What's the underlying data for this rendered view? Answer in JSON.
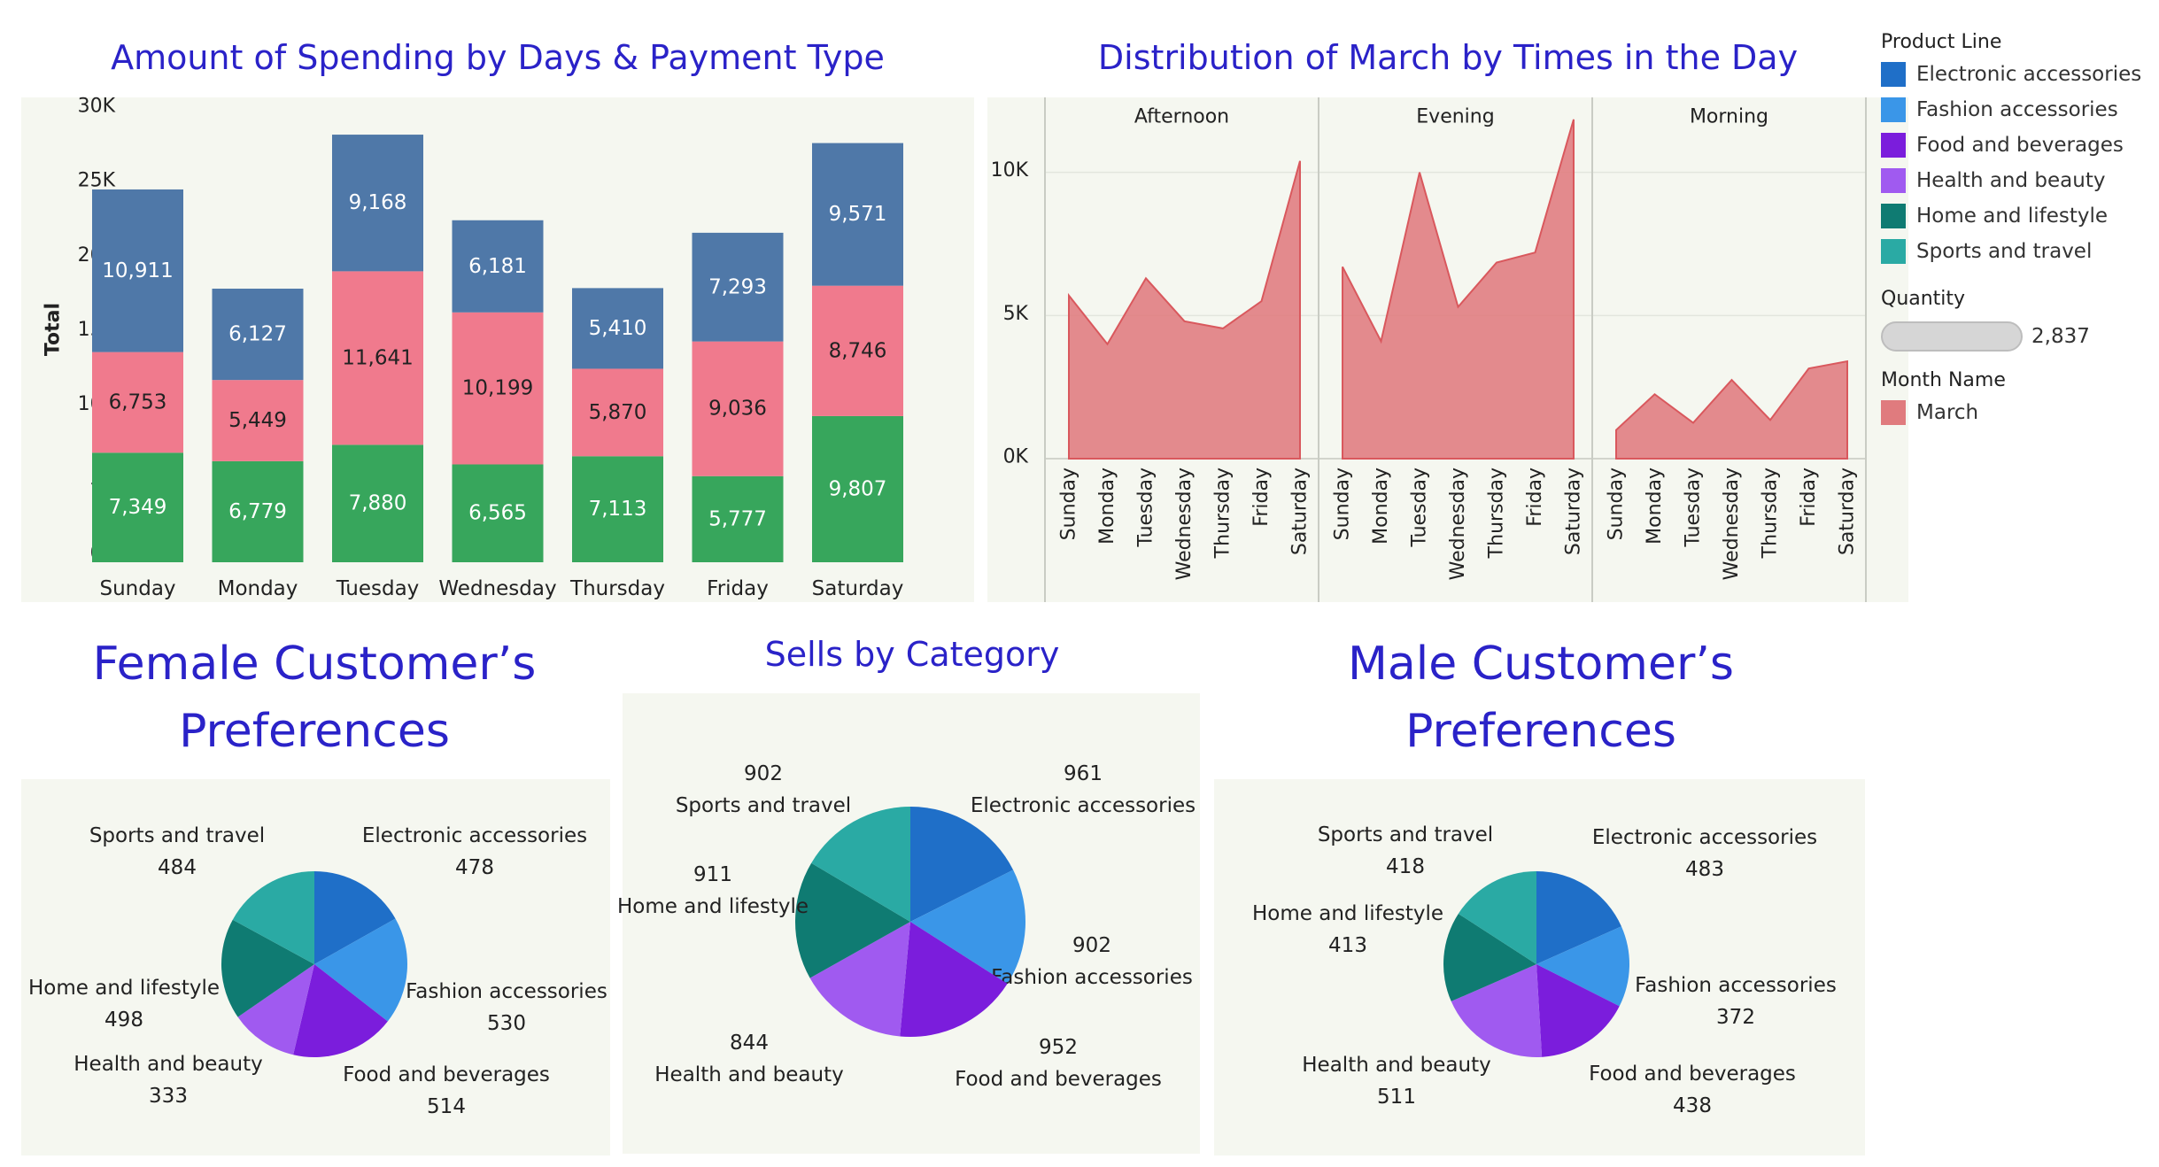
{
  "titles": {
    "bar": "Amount of Spending by Days & Payment Type",
    "area": "Distribution of March by Times in the Day",
    "female": "Female Customer’s Preferences",
    "category": "Sells by Category",
    "male": "Male Customer’s Preferences"
  },
  "legend": {
    "product_line_title": "Product Line",
    "product_lines": [
      {
        "label": "Electronic accessories",
        "color": "#1f6fc8"
      },
      {
        "label": "Fashion accessories",
        "color": "#3a96e8"
      },
      {
        "label": "Food and beverages",
        "color": "#7b1ddc"
      },
      {
        "label": "Health and beauty",
        "color": "#a05af0"
      },
      {
        "label": "Home and lifestyle",
        "color": "#0f7b72"
      },
      {
        "label": "Sports and travel",
        "color": "#2aaaa4"
      }
    ],
    "quantity_title": "Quantity",
    "quantity_value": "2,837",
    "month_title": "Month Name",
    "month_label": "March",
    "month_color": "#e07b7e"
  },
  "chart_data": [
    {
      "type": "bar",
      "stacked": true,
      "title": "Amount of Spending by Days & Payment Type",
      "ylabel": "Total",
      "ylim": [
        0,
        30000
      ],
      "yticks": [
        0,
        5000,
        10000,
        15000,
        20000,
        25000,
        30000
      ],
      "ytick_labels": [
        "0K",
        "5K",
        "10K",
        "15K",
        "20K",
        "25K",
        "30K"
      ],
      "categories": [
        "Sunday",
        "Monday",
        "Tuesday",
        "Wednesday",
        "Thursday",
        "Friday",
        "Saturday"
      ],
      "series": [
        {
          "color": "#37a65c",
          "label_color": "#ffffff",
          "values": [
            7349,
            6779,
            7880,
            6565,
            7113,
            5777,
            9807
          ],
          "labels": [
            "7,349",
            "6,779",
            "7,880",
            "6,565",
            "7,113",
            "5,777",
            "9,807"
          ]
        },
        {
          "color": "#f07a8d",
          "label_color": "#222222",
          "values": [
            6753,
            5449,
            11641,
            10199,
            5870,
            9036,
            8746
          ],
          "labels": [
            "6,753",
            "5,449",
            "11,641",
            "10,199",
            "5,870",
            "9,036",
            "8,746"
          ]
        },
        {
          "color": "#4f78a8",
          "label_color": "#ffffff",
          "values": [
            10911,
            6127,
            9168,
            6181,
            5410,
            7293,
            9571
          ],
          "labels": [
            "10,911",
            "6,127",
            "9,168",
            "6,181",
            "5,410",
            "7,293",
            "9,571"
          ]
        }
      ]
    },
    {
      "type": "area",
      "title": "Distribution of March by Times in the Day",
      "ylim": [
        0,
        12000
      ],
      "yticks": [
        0,
        5000,
        10000
      ],
      "ytick_labels": [
        "0K",
        "5K",
        "10K"
      ],
      "categories": [
        "Sunday",
        "Monday",
        "Tuesday",
        "Wednesday",
        "Thursday",
        "Friday",
        "Saturday"
      ],
      "color": "#e07b7e",
      "panels": [
        {
          "name": "Afternoon",
          "values": [
            5700,
            4000,
            6300,
            4800,
            4550,
            5500,
            10400
          ]
        },
        {
          "name": "Evening",
          "values": [
            6700,
            4100,
            10000,
            5300,
            6850,
            7200,
            11850
          ]
        },
        {
          "name": "Morning",
          "values": [
            1000,
            2250,
            1250,
            2750,
            1350,
            3150,
            3400
          ]
        }
      ]
    },
    {
      "type": "pie",
      "title": "Female Customer’s Preferences",
      "slices": [
        {
          "label": "Electronic accessories",
          "value": 478,
          "value_label": "478",
          "color": "#1f6fc8"
        },
        {
          "label": "Fashion accessories",
          "value": 530,
          "value_label": "530",
          "color": "#3a96e8"
        },
        {
          "label": "Food and beverages",
          "value": 514,
          "value_label": "514",
          "color": "#7b1ddc"
        },
        {
          "label": "Health and beauty",
          "value": 333,
          "value_label": "333",
          "color": "#a05af0"
        },
        {
          "label": "Home and lifestyle",
          "value": 498,
          "value_label": "498",
          "color": "#0f7b72"
        },
        {
          "label": "Sports and travel",
          "value": 484,
          "value_label": "484",
          "color": "#2aaaa4"
        }
      ]
    },
    {
      "type": "pie",
      "title": "Sells by Category",
      "slices": [
        {
          "label": "Electronic accessories",
          "value": 961,
          "value_label": "961",
          "color": "#1f6fc8"
        },
        {
          "label": "Fashion accessories",
          "value": 902,
          "value_label": "902",
          "color": "#3a96e8"
        },
        {
          "label": "Food and beverages",
          "value": 952,
          "value_label": "952",
          "color": "#7b1ddc"
        },
        {
          "label": "Health and beauty",
          "value": 844,
          "value_label": "844",
          "color": "#a05af0"
        },
        {
          "label": "Home and lifestyle",
          "value": 911,
          "value_label": "911",
          "color": "#0f7b72"
        },
        {
          "label": "Sports and travel",
          "value": 902,
          "value_label": "902",
          "color": "#2aaaa4"
        }
      ]
    },
    {
      "type": "pie",
      "title": "Male Customer’s Preferences",
      "slices": [
        {
          "label": "Electronic accessories",
          "value": 483,
          "value_label": "483",
          "color": "#1f6fc8"
        },
        {
          "label": "Fashion accessories",
          "value": 372,
          "value_label": "372",
          "color": "#3a96e8"
        },
        {
          "label": "Food and beverages",
          "value": 438,
          "value_label": "438",
          "color": "#7b1ddc"
        },
        {
          "label": "Health and beauty",
          "value": 511,
          "value_label": "511",
          "color": "#a05af0"
        },
        {
          "label": "Home and lifestyle",
          "value": 413,
          "value_label": "413",
          "color": "#0f7b72"
        },
        {
          "label": "Sports and travel",
          "value": 418,
          "value_label": "418",
          "color": "#2aaaa4"
        }
      ]
    }
  ]
}
